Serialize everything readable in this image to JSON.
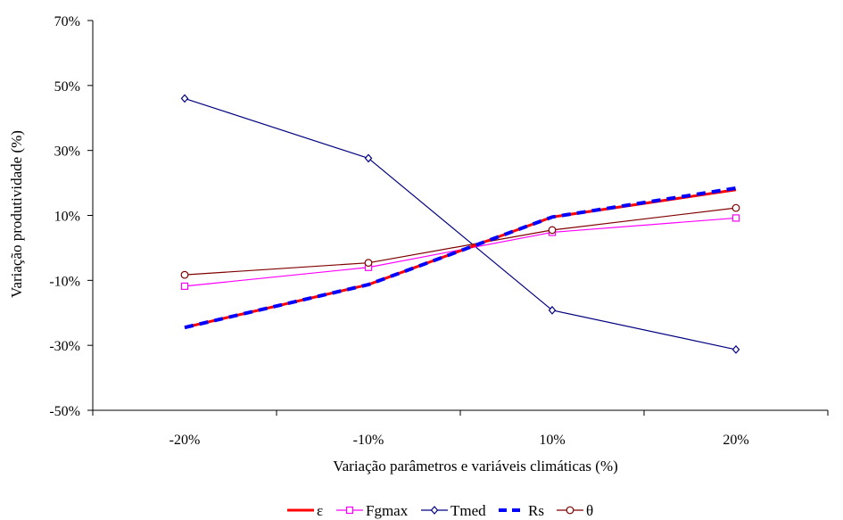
{
  "chart_data": {
    "type": "line",
    "title": "",
    "xlabel": "Variação parâmetros e variáveis climáticas (%)",
    "ylabel": "Variação produtividade (%)",
    "categories": [
      "-20%",
      "-10%",
      "10%",
      "20%"
    ],
    "y_ticks": [
      "-50%",
      "-30%",
      "-10%",
      "10%",
      "30%",
      "50%",
      "70%"
    ],
    "ylim": [
      -50,
      70
    ],
    "y_step": 20,
    "grid": false,
    "legend_position": "bottom",
    "series": [
      {
        "name": "ε",
        "values": [
          -24.5,
          -11.3,
          9.5,
          17.9
        ],
        "color": "#ff0000",
        "style": "solid-thick",
        "marker": "none"
      },
      {
        "name": "Fgmax",
        "values": [
          -11.8,
          -6.0,
          4.8,
          9.2
        ],
        "color": "#ff00ff",
        "style": "solid",
        "marker": "square"
      },
      {
        "name": "Tmed",
        "values": [
          46.0,
          27.6,
          -19.2,
          -31.3
        ],
        "color": "#000080",
        "style": "solid",
        "marker": "diamond"
      },
      {
        "name": "Rs",
        "values": [
          -24.5,
          -11.3,
          9.5,
          18.4
        ],
        "color": "#0000ff",
        "style": "dashed-thick",
        "marker": "none"
      },
      {
        "name": "θ",
        "values": [
          -8.3,
          -4.6,
          5.5,
          12.3
        ],
        "color": "#800000",
        "style": "solid",
        "marker": "circle"
      }
    ]
  }
}
